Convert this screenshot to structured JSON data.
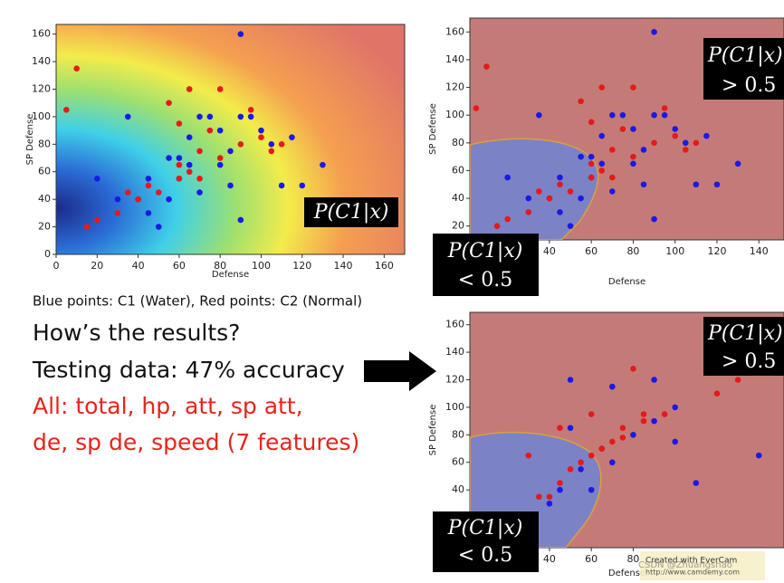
{
  "slide": {
    "caption": "Blue points: C1 (Water), Red points: C2 (Normal)",
    "question": "How’s the results?",
    "testing": "Testing data: 47% accuracy",
    "features_1": "All: total, hp, att, sp att,",
    "features_2": "de, sp de, speed (7 features)",
    "prob_label": "P(C1|x)",
    "gt": "> 0.5",
    "lt": "< 0.5",
    "watermark_1": "Created with EverCam",
    "watermark_2": "http://www.camdemy.com",
    "watermark_3": "CSDN @Zhuangshao"
  },
  "chart_data": [
    {
      "type": "scatter",
      "xlabel": "Defense",
      "ylabel": "SP Defense",
      "xlim": [
        0,
        170
      ],
      "ylim": [
        0,
        167
      ],
      "xticks": [
        0,
        20,
        40,
        60,
        80,
        100,
        120,
        140,
        160
      ],
      "yticks": [
        0,
        20,
        40,
        60,
        80,
        100,
        120,
        140,
        160
      ],
      "series": [
        {
          "color": "#1a1ae6",
          "x": [
            20,
            30,
            35,
            40,
            45,
            45,
            50,
            55,
            55,
            60,
            60,
            65,
            65,
            70,
            70,
            75,
            80,
            80,
            85,
            85,
            90,
            90,
            95,
            90,
            100,
            105,
            110,
            115,
            120,
            130
          ],
          "values": [
            55,
            40,
            100,
            40,
            55,
            30,
            20,
            70,
            40,
            55,
            70,
            85,
            65,
            45,
            100,
            100,
            90,
            65,
            75,
            50,
            160,
            100,
            100,
            25,
            90,
            80,
            50,
            85,
            50,
            65
          ]
        },
        {
          "color": "#e61a1a",
          "x": [
            5,
            10,
            15,
            20,
            30,
            35,
            40,
            45,
            50,
            55,
            60,
            60,
            65,
            70,
            70,
            75,
            80,
            80,
            90,
            95,
            100,
            105,
            110,
            60,
            65
          ],
          "values": [
            105,
            135,
            20,
            25,
            30,
            45,
            40,
            50,
            45,
            110,
            65,
            55,
            60,
            55,
            75,
            90,
            120,
            70,
            80,
            105,
            85,
            75,
            80,
            95,
            120
          ]
        }
      ]
    },
    {
      "type": "scatter",
      "xlabel": "Defense",
      "ylabel": "SP Defense",
      "xlim": [
        2,
        152
      ],
      "ylim": [
        10,
        170
      ],
      "xticks": [
        40,
        60,
        80,
        100,
        120,
        140
      ],
      "yticks": [
        20,
        40,
        60,
        80,
        100,
        120,
        140,
        160
      ],
      "series": [
        {
          "color": "#1a1ae6",
          "x": [
            20,
            30,
            35,
            40,
            45,
            45,
            50,
            55,
            55,
            60,
            60,
            65,
            65,
            70,
            70,
            75,
            80,
            80,
            85,
            85,
            90,
            90,
            95,
            90,
            100,
            105,
            110,
            115,
            120,
            130
          ],
          "values": [
            55,
            40,
            100,
            40,
            55,
            30,
            20,
            70,
            40,
            55,
            70,
            85,
            65,
            45,
            100,
            100,
            90,
            65,
            75,
            50,
            160,
            100,
            100,
            25,
            90,
            80,
            50,
            85,
            50,
            65
          ]
        },
        {
          "color": "#e61a1a",
          "x": [
            5,
            10,
            15,
            20,
            30,
            35,
            40,
            45,
            50,
            55,
            60,
            60,
            65,
            70,
            70,
            75,
            80,
            80,
            90,
            95,
            100,
            105,
            110,
            60,
            65
          ],
          "values": [
            105,
            135,
            20,
            25,
            30,
            45,
            40,
            50,
            45,
            110,
            65,
            55,
            60,
            55,
            75,
            90,
            120,
            70,
            80,
            105,
            85,
            75,
            80,
            95,
            120
          ]
        }
      ]
    },
    {
      "type": "scatter",
      "xlabel": "Defense",
      "ylabel": "SP Defense",
      "xlim": [
        2,
        152
      ],
      "ylim": [
        -2,
        169
      ],
      "xticks": [
        40,
        60,
        80
      ],
      "yticks": [
        40,
        60,
        80,
        100,
        120,
        140,
        160
      ],
      "series": [
        {
          "color": "#1a1ae6",
          "x": [
            50,
            70,
            90,
            60,
            65,
            70,
            80,
            90,
            100,
            100,
            110,
            140,
            40,
            45,
            55,
            50
          ],
          "values": [
            120,
            115,
            120,
            40,
            70,
            60,
            80,
            90,
            100,
            75,
            45,
            65,
            30,
            40,
            55,
            85
          ]
        },
        {
          "color": "#e61a1a",
          "x": [
            30,
            45,
            60,
            75,
            80,
            85,
            95,
            120,
            130,
            40,
            45,
            50,
            55,
            60,
            65,
            75,
            85,
            70,
            35
          ],
          "values": [
            65,
            85,
            95,
            78,
            128,
            95,
            95,
            110,
            120,
            35,
            45,
            55,
            60,
            65,
            70,
            85,
            90,
            75,
            35
          ]
        }
      ]
    }
  ]
}
